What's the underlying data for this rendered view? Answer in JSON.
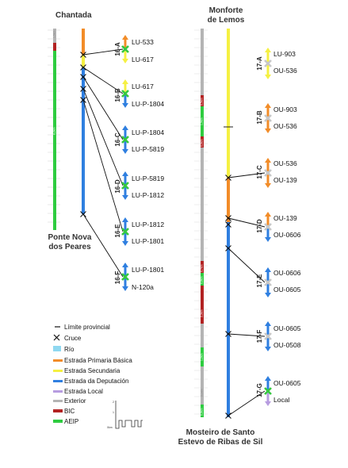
{
  "titles": {
    "chantada": "Chantada",
    "ponte_nova_1": "Ponte Nova",
    "ponte_nova_2": "dos Peares",
    "monforte_1": "Monforte",
    "monforte_2": "de Lemos",
    "mosteiro_1": "Mosteiro de Santo",
    "mosteiro_2": "Estevo de Ribas de Sil"
  },
  "colors": {
    "rio": "#8fd8f0",
    "primaria": "#f28c28",
    "secundaria": "#f5f042",
    "deputacion": "#2f7fe0",
    "local": "#b79ce0",
    "exterior": "#b4b4b4",
    "bic": "#b22222",
    "aeip": "#2ecc40",
    "node": "#35c840",
    "node_gray": "#c8c8c8"
  },
  "left_segments": [
    {
      "id": "16-A",
      "top_road": "LU-533",
      "bottom_road": "LU-617",
      "top_color": "primaria",
      "bottom_color": "secundaria"
    },
    {
      "id": "16-B",
      "top_road": "LU-617",
      "bottom_road": "LU-P-1804",
      "top_color": "secundaria",
      "bottom_color": "deputacion"
    },
    {
      "id": "16-C",
      "top_road": "LU-P-1804",
      "bottom_road": "LU-P-5819",
      "top_color": "deputacion",
      "bottom_color": "deputacion"
    },
    {
      "id": "16-D",
      "top_road": "LU-P-5819",
      "bottom_road": "LU-P-1812",
      "top_color": "deputacion",
      "bottom_color": "deputacion"
    },
    {
      "id": "16-E",
      "top_road": "LU-P-1812",
      "bottom_road": "LU-P-1801",
      "top_color": "deputacion",
      "bottom_color": "deputacion"
    },
    {
      "id": "16-F",
      "top_road": "LU-P-1801",
      "bottom_road": "N-120a",
      "top_color": "deputacion",
      "bottom_color": "deputacion"
    }
  ],
  "right_segments": [
    {
      "id": "17-A",
      "top_road": "LU-903",
      "bottom_road": "OU-536",
      "top_color": "secundaria",
      "bottom_color": "secundaria"
    },
    {
      "id": "17-B",
      "top_road": "OU-903",
      "bottom_road": "OU-536",
      "top_color": "primaria",
      "bottom_color": "primaria"
    },
    {
      "id": "17-C",
      "top_road": "OU-536",
      "bottom_road": "OU-139",
      "top_color": "primaria",
      "bottom_color": "primaria"
    },
    {
      "id": "17-D",
      "top_road": "OU-139",
      "bottom_road": "OU-0606",
      "top_color": "primaria",
      "bottom_color": "deputacion"
    },
    {
      "id": "17-E",
      "top_road": "OU-0606",
      "bottom_road": "OU-0605",
      "top_color": "deputacion",
      "bottom_color": "deputacion"
    },
    {
      "id": "17-F",
      "top_road": "OU-0605",
      "bottom_road": "OU-0508",
      "top_color": "deputacion",
      "bottom_color": "deputacion"
    },
    {
      "id": "17-G",
      "top_road": "OU-0605",
      "bottom_road": "Local",
      "top_color": "deputacion",
      "bottom_color": "local"
    }
  ],
  "legend": {
    "items": [
      {
        "key": "limite",
        "label": "Límite provincial",
        "symbol": "line"
      },
      {
        "key": "cruce",
        "label": "Cruce",
        "symbol": "cross"
      },
      {
        "key": "rio",
        "label": "Río",
        "symbol": "rect"
      },
      {
        "key": "primaria",
        "label": "Estrada Primaria Básica",
        "symbol": "bar"
      },
      {
        "key": "secundaria",
        "label": "Estrada Secundaria",
        "symbol": "bar"
      },
      {
        "key": "deputacion",
        "label": "Estrada da Deputación",
        "symbol": "bar"
      },
      {
        "key": "local",
        "label": "Estrada Local",
        "symbol": "bar"
      },
      {
        "key": "exterior",
        "label": "Exterior",
        "symbol": "bar"
      },
      {
        "key": "bic",
        "label": "BIC",
        "symbol": "bar"
      },
      {
        "key": "aeip",
        "label": "AEIP",
        "symbol": "bar"
      }
    ],
    "scale_labels": [
      "2",
      "1",
      "0km"
    ]
  }
}
